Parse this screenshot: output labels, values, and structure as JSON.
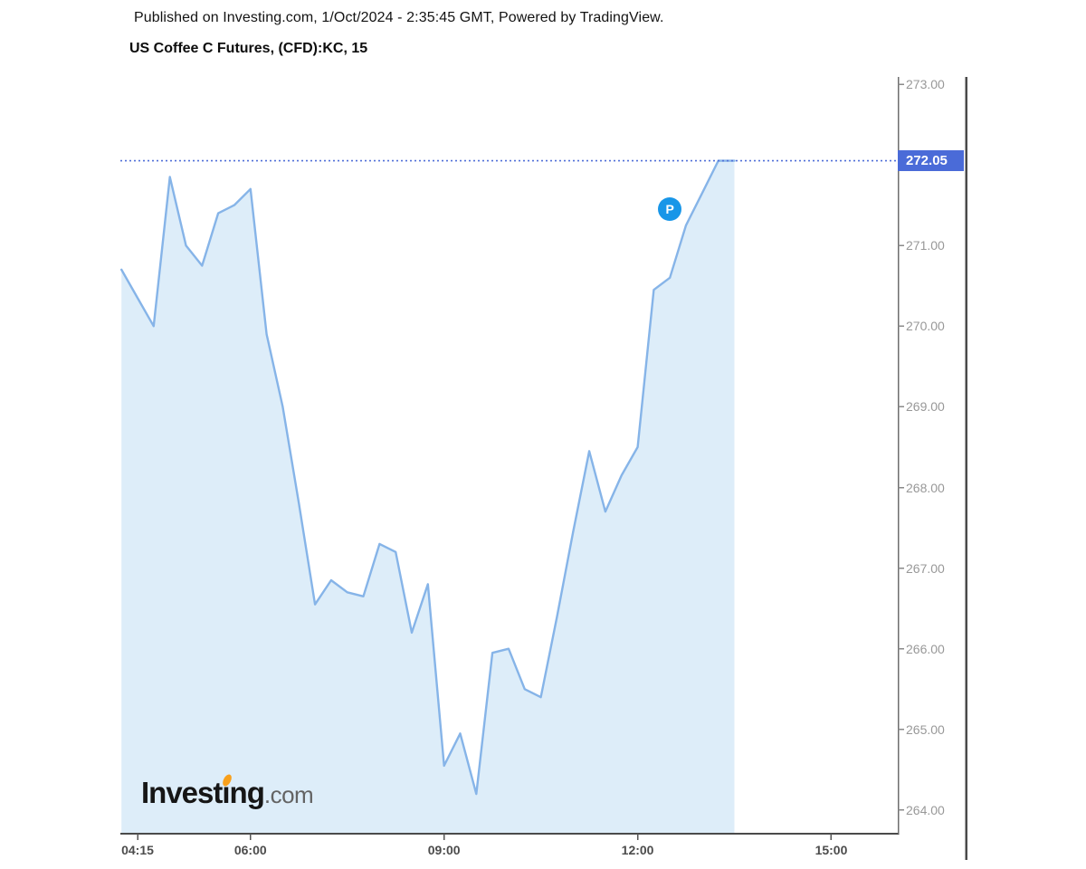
{
  "header": {
    "published_line": "Published on Investing.com, 1/Oct/2024 - 2:35:45 GMT, Powered by TradingView.",
    "instrument_title": "US Coffee C Futures, (CFD):KC, 15"
  },
  "watermark": {
    "brand": "Investing",
    "suffix": ".com"
  },
  "price_scale": {
    "ticks": [
      "273.00",
      "271.00",
      "270.00",
      "269.00",
      "268.00",
      "267.00",
      "266.00",
      "265.00",
      "264.00"
    ],
    "last_price_label": "272.05"
  },
  "time_scale": {
    "ticks": [
      "04:15",
      "06:00",
      "09:00",
      "12:00",
      "15:00"
    ]
  },
  "marker": {
    "label": "P",
    "time": "12:30",
    "price": 271.45
  },
  "colors": {
    "series_line": "#86b4e8",
    "series_fill": "#ddedf9",
    "last_price_level": "#4f6fd8",
    "last_price_badge_bg": "#4a6bd8",
    "marker_bg": "#1896e8",
    "logo_accent": "#f8a01c",
    "price_tick_text": "#989898",
    "time_tick_text": "#4c4c4c",
    "axis_line": "#4a4a4a"
  },
  "chart_data": {
    "type": "area",
    "title": "US Coffee C Futures, (CFD):KC, 15",
    "symbol": "KC",
    "interval": "15",
    "x": [
      "04:00",
      "04:15",
      "04:30",
      "04:45",
      "05:00",
      "05:15",
      "05:30",
      "05:45",
      "06:00",
      "06:15",
      "06:30",
      "06:45",
      "07:00",
      "07:15",
      "07:30",
      "07:45",
      "08:00",
      "08:15",
      "08:30",
      "08:45",
      "09:00",
      "09:15",
      "09:30",
      "09:45",
      "10:00",
      "10:15",
      "10:30",
      "10:45",
      "11:00",
      "11:15",
      "11:30",
      "11:45",
      "12:00",
      "12:15",
      "12:30",
      "12:45",
      "13:00",
      "13:15",
      "13:30"
    ],
    "values": [
      270.7,
      270.35,
      270.0,
      271.85,
      271.0,
      270.75,
      271.4,
      271.5,
      271.7,
      269.9,
      269.0,
      267.8,
      266.55,
      266.85,
      266.7,
      266.65,
      267.3,
      267.2,
      266.2,
      266.8,
      264.55,
      264.95,
      264.2,
      265.95,
      266.0,
      265.5,
      265.4,
      266.4,
      267.45,
      268.45,
      267.7,
      268.15,
      268.5,
      270.45,
      270.6,
      271.25,
      271.65,
      272.05,
      272.05
    ],
    "last_price": 272.05,
    "y_ticks": [
      273.0,
      271.0,
      270.0,
      269.0,
      268.0,
      267.0,
      266.0,
      265.0,
      264.0
    ],
    "x_ticks": [
      "04:15",
      "06:00",
      "09:00",
      "12:00",
      "15:00"
    ],
    "ylim": [
      263.7,
      273.1
    ],
    "xlabel": "",
    "ylabel": "",
    "grid": false,
    "legend_position": "none"
  }
}
